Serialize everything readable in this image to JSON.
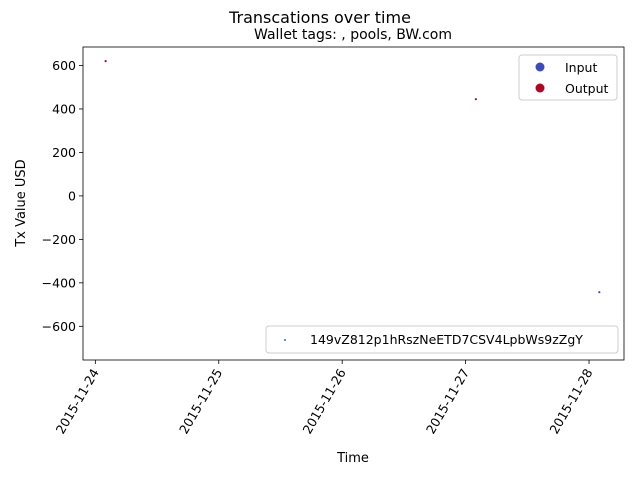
{
  "chart_data": {
    "type": "scatter",
    "suptitle": "Transcations over time",
    "title": "Wallet tags: , pools, BW.com",
    "xlabel": "Time",
    "ylabel": "Tx Value USD",
    "x_ticks": [
      "2015-11-24",
      "2015-11-25",
      "2015-11-26",
      "2015-11-27",
      "2015-11-28"
    ],
    "y_ticks": [
      600,
      400,
      200,
      0,
      -200,
      -400,
      -600
    ],
    "xlim": [
      "2015-11-23 21:36",
      "2015-11-28 06:48"
    ],
    "ylim": [
      -755,
      685
    ],
    "grid": false,
    "legends": {
      "type_legend": {
        "placement": "upper right",
        "entries": [
          {
            "label": "Input",
            "color": "#3b4cc0"
          },
          {
            "label": "Output",
            "color": "#b40426"
          }
        ]
      },
      "series_legend": {
        "placement": "lower right",
        "entries": [
          {
            "label": "149vZ812p1hRszNeETD7CSV4LpbWs9zZgY",
            "color": "#1f77b4"
          }
        ]
      }
    },
    "series": [
      {
        "name": "149vZ812p1hRszNeETD7CSV4LpbWs9zZgY",
        "points": [
          {
            "x": "2015-11-24 02:00",
            "y": 620,
            "type": "Output"
          },
          {
            "x": "2015-11-27 02:00",
            "y": 445,
            "type": "Output"
          },
          {
            "x": "2015-11-28 02:00",
            "y": -443,
            "type": "Input"
          }
        ]
      }
    ]
  }
}
